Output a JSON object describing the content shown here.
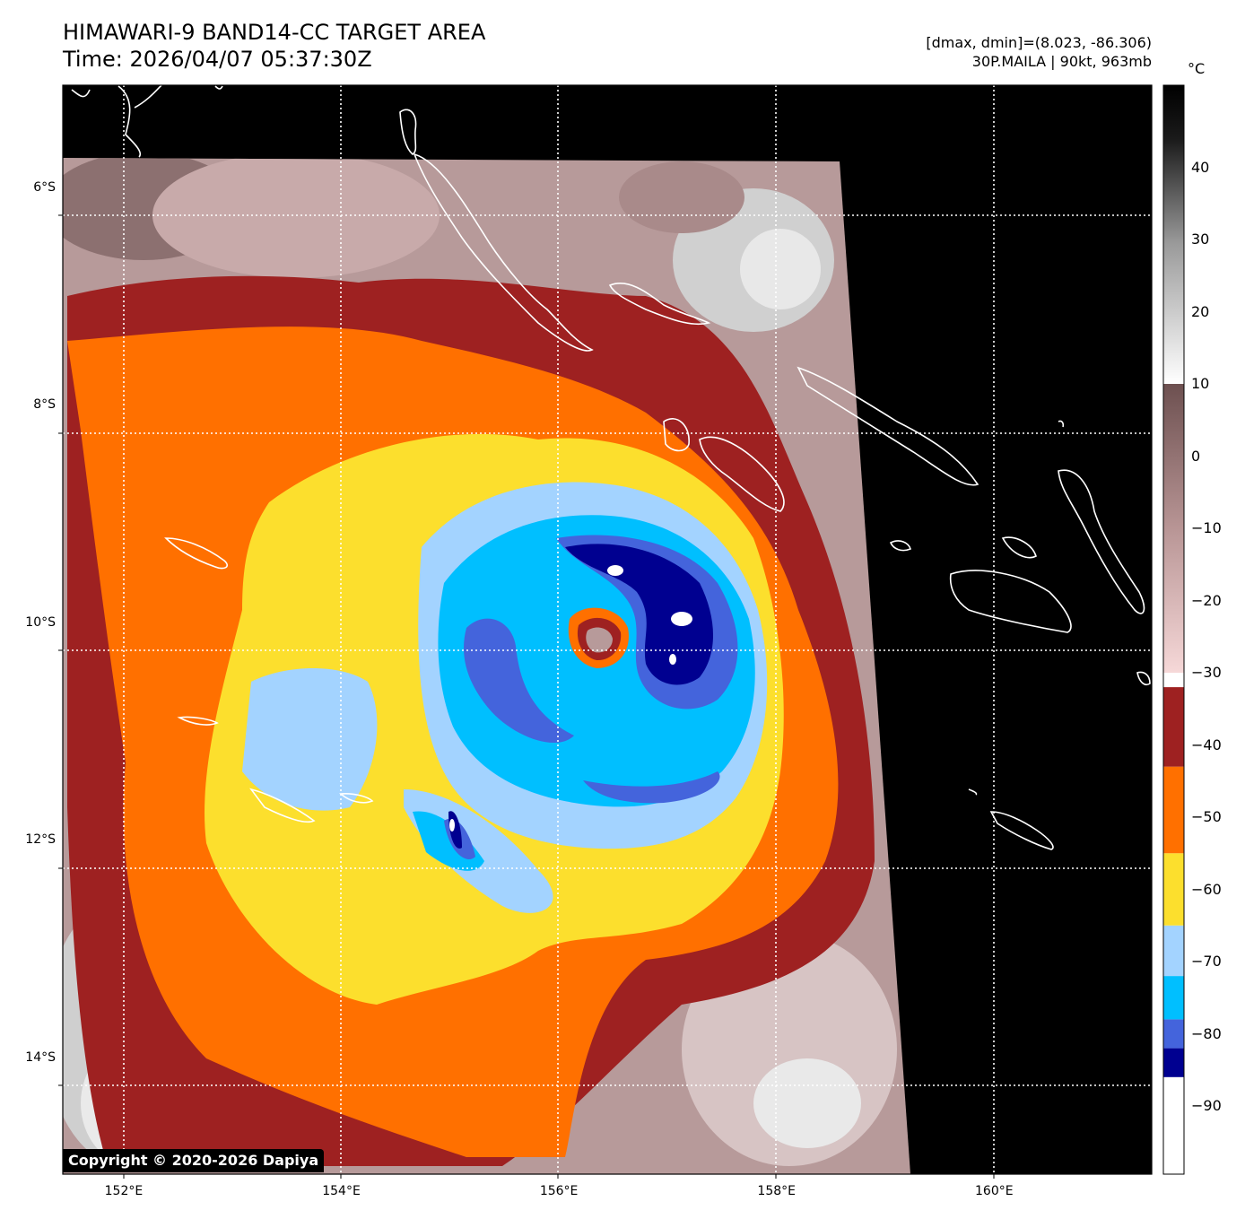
{
  "header": {
    "title": "HIMAWARI-9 BAND14-CC TARGET AREA",
    "time": "Time: 2026/04/07 05:37:30Z",
    "range": "[dmax, dmin]=(8.023, -86.306)",
    "storm": "30P.MAILA | 90kt, 963mb"
  },
  "map": {
    "latitude_labels": [
      "6°S",
      "8°S",
      "10°S",
      "12°S",
      "14°S"
    ],
    "longitude_labels": [
      "152°E",
      "154°E",
      "156°E",
      "158°E",
      "160°E"
    ],
    "storm_center": {
      "lat": -9.9,
      "lon": 156.6
    },
    "copyright": "Copyright © 2020-2026 Dapiya"
  },
  "colorbar": {
    "unit": "°C",
    "ticks": [
      "40",
      "30",
      "20",
      "10",
      "0",
      "−10",
      "−20",
      "−30",
      "−40",
      "−50",
      "−60",
      "−70",
      "−80",
      "−90"
    ],
    "bands": [
      {
        "from": -100,
        "to": -86,
        "color": "#ffffff"
      },
      {
        "from": -86,
        "to": -82,
        "color": "#000090"
      },
      {
        "from": -82,
        "to": -78,
        "color": "#4464dc"
      },
      {
        "from": -78,
        "to": -72,
        "color": "#00bfff"
      },
      {
        "from": -72,
        "to": -65,
        "color": "#a3d3ff"
      },
      {
        "from": -65,
        "to": -55,
        "color": "#fcdf2d"
      },
      {
        "from": -55,
        "to": -43,
        "color": "#ff7000"
      },
      {
        "from": -43,
        "to": -32,
        "color": "#9e2121"
      }
    ]
  }
}
